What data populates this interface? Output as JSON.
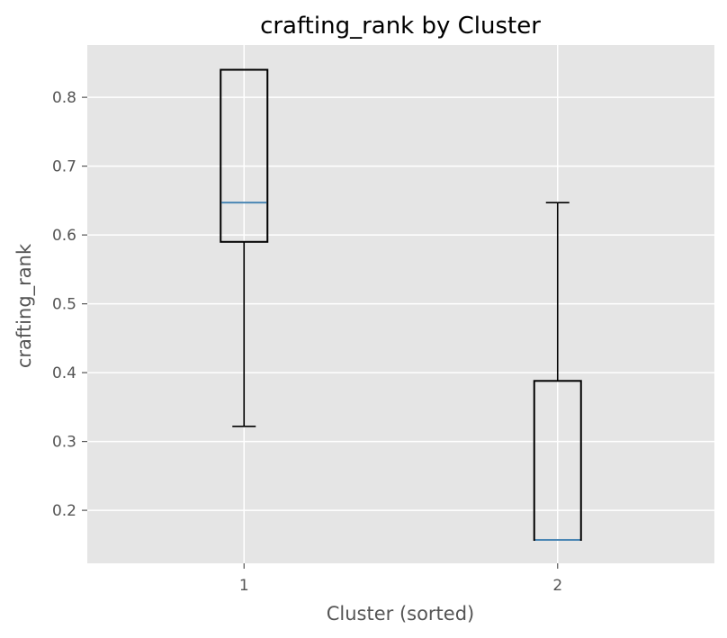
{
  "chart_data": {
    "type": "box",
    "title": "crafting_rank by Cluster",
    "xlabel": "Cluster (sorted)",
    "ylabel": "crafting_rank",
    "categories": [
      "1",
      "2"
    ],
    "ylim": [
      0.123,
      0.876
    ],
    "yticks": [
      0.2,
      0.3,
      0.4,
      0.5,
      0.6,
      0.7,
      0.8
    ],
    "ytick_labels": [
      "0.2",
      "0.3",
      "0.4",
      "0.5",
      "0.6",
      "0.7",
      "0.8"
    ],
    "grid": true,
    "boxes": [
      {
        "category": "1",
        "whisker_low": 0.322,
        "q1": 0.59,
        "median": 0.647,
        "q3": 0.84,
        "whisker_high": 0.84
      },
      {
        "category": "2",
        "whisker_low": 0.157,
        "q1": 0.157,
        "median": 0.157,
        "q3": 0.388,
        "whisker_high": 0.647
      }
    ],
    "colors": {
      "plot_background": "#e5e5e5",
      "grid": "#ffffff",
      "box": "#000000",
      "median": "#4a86b4",
      "axis_text": "#555555"
    }
  }
}
